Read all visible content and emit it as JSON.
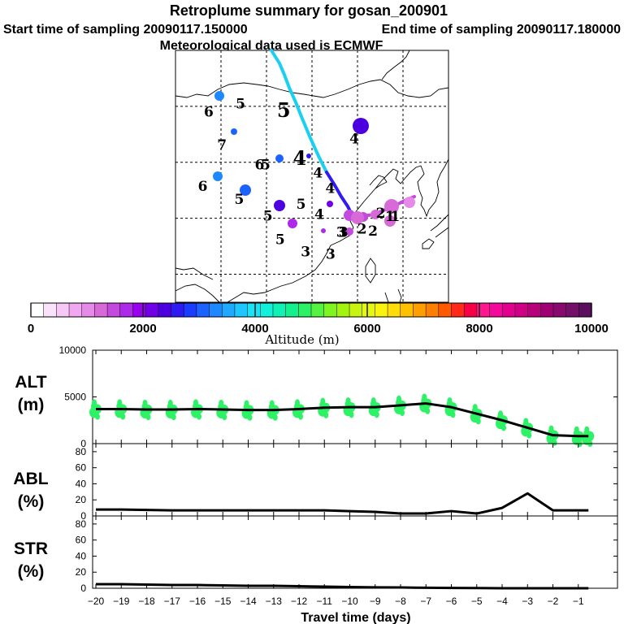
{
  "header": {
    "title": "Retroplume summary for gosan_200901",
    "start_label": "Start time of sampling 20090117.150000",
    "end_label": "End time of sampling 20090117.180000",
    "met_label": "Meteorological data used is ECMWF"
  },
  "colorbar": {
    "ticks": [
      "0",
      "2000",
      "4000",
      "6000",
      "8000",
      "10000"
    ],
    "label": "Altitude (m)",
    "colors": [
      "#ffffff",
      "#fbe2fb",
      "#f5c8f5",
      "#f0a8f0",
      "#e58ae8",
      "#d86ad8",
      "#c449df",
      "#ad2ae8",
      "#9a00f0",
      "#7000e6",
      "#4d00df",
      "#2e1af2",
      "#1c3cff",
      "#1c62ff",
      "#1e88ff",
      "#20aaff",
      "#1ec8ff",
      "#19e3f7",
      "#12f2da",
      "#10f2b5",
      "#15f08e",
      "#2df266",
      "#56f242",
      "#7ef520",
      "#a3f50f",
      "#c8f510",
      "#e6f710",
      "#faf20f",
      "#ffdc0a",
      "#ffc000",
      "#ff9e00",
      "#ff7f00",
      "#ff5a00",
      "#ff2a1a",
      "#f70048",
      "#ff1890",
      "#f40a9a",
      "#e4008f",
      "#cf0085",
      "#b8007a",
      "#9f0073",
      "#880a6e",
      "#73106a",
      "#5c0f5e"
    ]
  },
  "map": {
    "trajectory_color_early": "#19d0f2",
    "trajectory_color_late": "#2e1af2",
    "labels": [
      {
        "day": "6",
        "lon": 97.3,
        "lat": 48.2
      },
      {
        "day": "5",
        "lon": 104.3,
        "lat": 49.6
      },
      {
        "day": "5",
        "lon": 113.8,
        "lat": 48.1
      },
      {
        "day": "7",
        "lon": 100.2,
        "lat": 42.3
      },
      {
        "day": "4",
        "lon": 129.3,
        "lat": 43.4
      },
      {
        "day": "6",
        "lon": 108.5,
        "lat": 38.7
      },
      {
        "day": "5",
        "lon": 109.8,
        "lat": 38.7
      },
      {
        "day": "4",
        "lon": 117.3,
        "lat": 39.5
      },
      {
        "day": "4",
        "lon": 121.3,
        "lat": 37.3
      },
      {
        "day": "6",
        "lon": 96.0,
        "lat": 34.9
      },
      {
        "day": "4",
        "lon": 124.0,
        "lat": 34.5
      },
      {
        "day": "5",
        "lon": 104.0,
        "lat": 32.6
      },
      {
        "day": "5",
        "lon": 117.6,
        "lat": 31.7
      },
      {
        "day": "4",
        "lon": 121.6,
        "lat": 29.9
      },
      {
        "day": "5",
        "lon": 110.3,
        "lat": 29.6
      },
      {
        "day": "3",
        "lon": 126.4,
        "lat": 26.7
      },
      {
        "day": "3",
        "lon": 126.9,
        "lat": 26.7
      },
      {
        "day": "2",
        "lon": 131.0,
        "lat": 27.3
      },
      {
        "day": "2",
        "lon": 133.4,
        "lat": 26.9
      },
      {
        "day": "2",
        "lon": 135.1,
        "lat": 30.1
      },
      {
        "day": "1",
        "lon": 137.1,
        "lat": 29.5
      },
      {
        "day": "1",
        "lon": 138.3,
        "lat": 29.5
      },
      {
        "day": "5",
        "lon": 113.0,
        "lat": 25.4
      },
      {
        "day": "3",
        "lon": 118.6,
        "lat": 23.2
      },
      {
        "day": "3",
        "lon": 124.1,
        "lat": 22.8
      }
    ]
  },
  "chart_data": [
    {
      "type": "line",
      "panel": "altitude",
      "ylabel_line1": "ALT",
      "ylabel_line2": "(m)",
      "ylim": [
        0,
        10000
      ],
      "yticks": [
        "0",
        "5000",
        "10000"
      ],
      "x": [
        -20,
        -19,
        -18,
        -17,
        -16,
        -15,
        -14,
        -13,
        -12,
        -11,
        -10,
        -9,
        -8,
        -7,
        -6,
        -5,
        -4,
        -3,
        -2,
        -1,
        -0.6
      ],
      "values": [
        3700,
        3700,
        3650,
        3650,
        3700,
        3650,
        3600,
        3600,
        3700,
        3850,
        3900,
        3900,
        4100,
        4300,
        3900,
        3200,
        2500,
        1700,
        900,
        800,
        800
      ],
      "scatter_color": "#2df266"
    },
    {
      "type": "line",
      "panel": "abl",
      "ylabel_line1": "ABL",
      "ylabel_line2": "(%)",
      "ylim": [
        0,
        90
      ],
      "yticks": [
        "0",
        "20",
        "40",
        "60",
        "80"
      ],
      "x": [
        -20,
        -19,
        -18,
        -17,
        -16,
        -15,
        -14,
        -13,
        -12,
        -11,
        -10,
        -9,
        -8,
        -7,
        -6,
        -5,
        -4,
        -3,
        -2,
        -1,
        -0.6
      ],
      "values": [
        8,
        8,
        7.5,
        7,
        7,
        7,
        7,
        7,
        7,
        7,
        6,
        5,
        3,
        3,
        6,
        3,
        10,
        28,
        7,
        7,
        7
      ]
    },
    {
      "type": "line",
      "panel": "str",
      "ylabel_line1": "STR",
      "ylabel_line2": "(%)",
      "ylim": [
        0,
        90
      ],
      "yticks": [
        "0",
        "20",
        "40",
        "60",
        "80"
      ],
      "x": [
        -20,
        -19,
        -18,
        -17,
        -16,
        -15,
        -14,
        -13,
        -12,
        -11,
        -10,
        -9,
        -8,
        -7,
        -6,
        -5,
        -4,
        -3,
        -2,
        -1,
        -0.6
      ],
      "values": [
        5,
        5,
        4.5,
        4,
        4,
        3.5,
        3,
        3,
        2.5,
        2,
        1.5,
        1.2,
        1,
        0.6,
        0.4,
        0.2,
        0,
        0,
        0,
        0,
        0
      ]
    }
  ],
  "xaxis": {
    "title": "Travel time (days)",
    "tick_labels": [
      "−20",
      "−19",
      "−18",
      "−17",
      "−16",
      "−15",
      "−14",
      "−13",
      "−12",
      "−11",
      "−10",
      "−9",
      "−8",
      "−7",
      "−6",
      "−5",
      "−4",
      "−3",
      "−2",
      "−1"
    ]
  }
}
